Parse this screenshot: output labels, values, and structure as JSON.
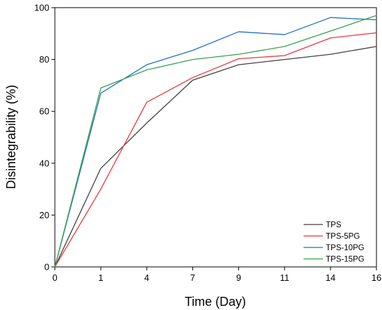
{
  "chart_data": {
    "type": "line",
    "xlabel": "Time (Day)",
    "ylabel": "Disintegrability (%)",
    "categories": [
      "0",
      "1",
      "4",
      "7",
      "9",
      "11",
      "14",
      "16"
    ],
    "ylim": [
      0,
      100
    ],
    "yticks": [
      0,
      20,
      40,
      60,
      80,
      100
    ],
    "grid": false,
    "legend_position": "bottom-right",
    "series": [
      {
        "name": "TPS",
        "color": "#404040",
        "values": [
          0,
          38,
          55.5,
          72,
          78,
          80,
          82,
          85
        ]
      },
      {
        "name": "TPS-5PG",
        "color": "#e8383d",
        "values": [
          0,
          30,
          63.5,
          73,
          80.3,
          81.5,
          88.3,
          90.3
        ]
      },
      {
        "name": "TPS-10PG",
        "color": "#1f6fc4",
        "values": [
          0,
          67,
          78,
          83.5,
          90.7,
          89.6,
          96.2,
          95.3
        ]
      },
      {
        "name": "TPS-15PG",
        "color": "#36a150",
        "values": [
          0,
          69,
          76,
          80,
          82,
          85,
          91,
          97
        ]
      }
    ]
  }
}
